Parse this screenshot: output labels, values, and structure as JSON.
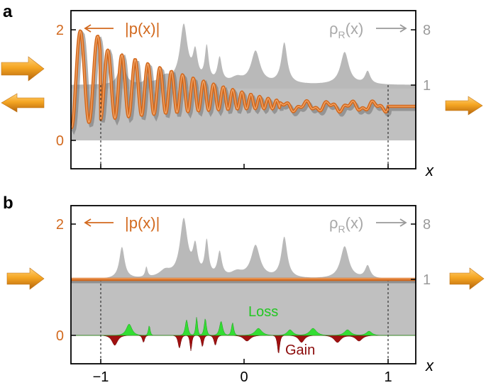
{
  "chart_data": [
    {
      "panel": "a",
      "type": "line",
      "xlim": [
        -1.2,
        1.2
      ],
      "ylim_left": [
        -0.5,
        2.25
      ],
      "left_ticks": [
        "0",
        "2"
      ],
      "right_ticks": [
        "1",
        "8"
      ],
      "x_ticks": [],
      "xlabel": "x",
      "legend_left": "|p(x)|",
      "legend_right": "ρR(x)",
      "dashed_lines_x": [
        -1,
        1
      ],
      "band": [
        0,
        1
      ],
      "series": [
        {
          "name": "|p(x)|",
          "color": "#d2691e"
        },
        {
          "name": "ρR(x)",
          "color": "#b9b9b9"
        }
      ]
    },
    {
      "panel": "b",
      "type": "line",
      "xlim": [
        -1.2,
        1.2
      ],
      "ylim_left": [
        -0.5,
        2.25
      ],
      "left_ticks": [
        "0",
        "2"
      ],
      "right_ticks": [
        "1",
        "8"
      ],
      "x_ticks": [
        "−1",
        "0",
        "1"
      ],
      "xlabel": "x",
      "legend_left": "|p(x)|",
      "legend_right": "ρR(x)",
      "loss_label": "Loss",
      "gain_label": "Gain",
      "dashed_lines_x": [
        -1,
        1
      ],
      "band": [
        0,
        1
      ],
      "p_value": 1,
      "series": [
        {
          "name": "|p(x)|",
          "color": "#d2691e"
        },
        {
          "name": "ρR(x)",
          "color": "#b9b9b9"
        },
        {
          "name": "Loss",
          "color": "#33dd33"
        },
        {
          "name": "Gain",
          "color": "#a01010"
        }
      ]
    }
  ],
  "panels": {
    "a": {
      "letter": "a"
    },
    "b": {
      "letter": "b"
    }
  },
  "colors": {
    "orange": "#d2691e",
    "gray_fill": "#b9b9b9",
    "band": "#c0c0c0",
    "loss": "#33dd33",
    "gain": "#a01010"
  }
}
